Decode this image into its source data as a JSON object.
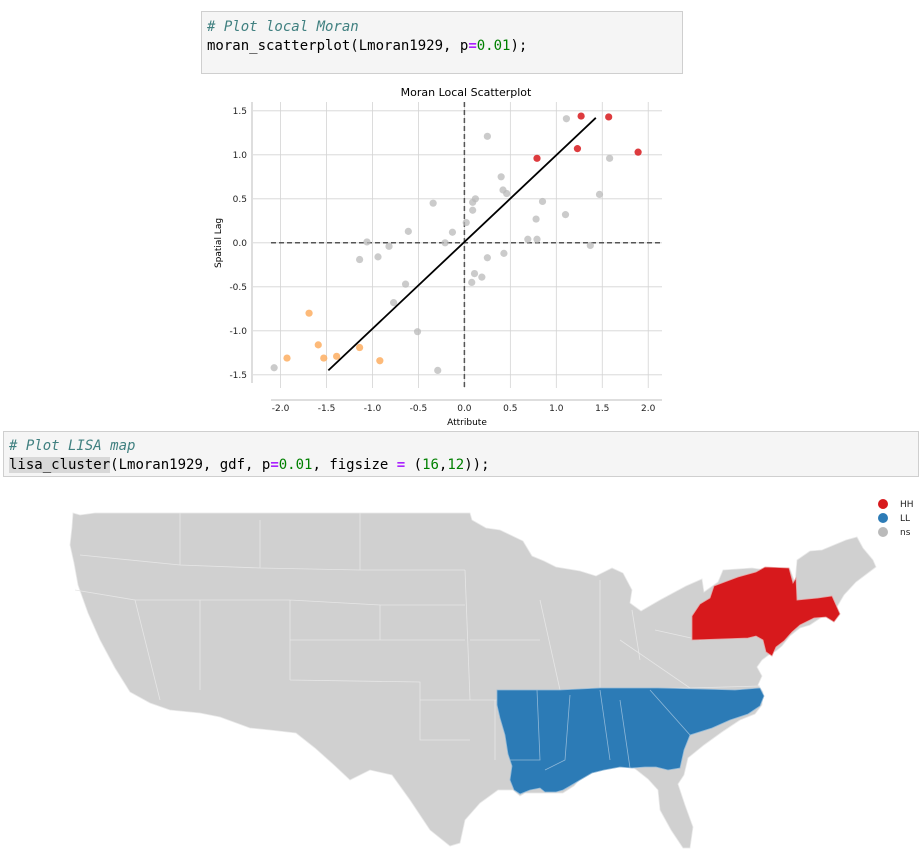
{
  "cell1": {
    "comment": "# Plot local Moran",
    "fn": "moran_scatterplot",
    "arg1": "Lmoran1929, p",
    "eq": "=",
    "pval": "0.01",
    "end": ");"
  },
  "cell2": {
    "comment": "# Plot LISA map",
    "fn": "lisa_cluster",
    "arg1": "(Lmoran1929, gdf, p",
    "eq1": "=",
    "pval": "0.01",
    "mid": ", figsize ",
    "eq2": "=",
    "open": " (",
    "w": "16",
    "comma": ",",
    "h": "12",
    "end": "));"
  },
  "chart_data": {
    "type": "scatter",
    "title": "Moran Local Scatterplot",
    "xlabel": "Attribute",
    "ylabel": "Spatial Lag",
    "xlim": [
      -2.3,
      2.15
    ],
    "ylim": [
      -1.65,
      1.6
    ],
    "xticks": [
      "-2.0",
      "-1.5",
      "-1.0",
      "-0.5",
      "0.0",
      "0.5",
      "1.0",
      "1.5",
      "2.0"
    ],
    "xtick_values": [
      -2.0,
      -1.5,
      -1.0,
      -0.5,
      0.0,
      0.5,
      1.0,
      1.5,
      2.0
    ],
    "yticks": [
      "1.5",
      "1.0",
      "0.5",
      "0.0",
      "-0.5",
      "-1.0",
      "-1.5"
    ],
    "ytick_values": [
      1.5,
      1.0,
      0.5,
      0.0,
      -0.5,
      -1.0,
      -1.5
    ],
    "grid": true,
    "fit_line": {
      "x": [
        -1.48,
        1.43
      ],
      "y": [
        -1.45,
        1.42
      ]
    },
    "reference_lines": {
      "x": 0.0,
      "y": 0.0
    },
    "colors": {
      "HH": "#d7191c",
      "LL": "#2c7bb6",
      "LH": "#abd9e9",
      "HL": "#fdae61",
      "ns": "#bababa"
    },
    "series": [
      {
        "group": "HH",
        "points": [
          [
            1.27,
            1.44
          ],
          [
            1.57,
            1.43
          ],
          [
            0.79,
            0.96
          ],
          [
            1.23,
            1.07
          ],
          [
            1.89,
            1.03
          ]
        ]
      },
      {
        "group": "HL",
        "points": [
          [
            -1.69,
            -0.8
          ],
          [
            -1.59,
            -1.16
          ],
          [
            -1.93,
            -1.31
          ],
          [
            -1.53,
            -1.31
          ],
          [
            -1.39,
            -1.29
          ],
          [
            -1.14,
            -1.19
          ],
          [
            -0.92,
            -1.34
          ]
        ]
      },
      {
        "group": "ns",
        "points": [
          [
            1.11,
            1.41
          ],
          [
            0.25,
            1.21
          ],
          [
            1.58,
            0.96
          ],
          [
            0.4,
            0.75
          ],
          [
            0.42,
            0.6
          ],
          [
            1.47,
            0.55
          ],
          [
            0.46,
            0.56
          ],
          [
            0.12,
            0.5
          ],
          [
            0.09,
            0.46
          ],
          [
            0.85,
            0.47
          ],
          [
            -0.34,
            0.45
          ],
          [
            0.09,
            0.37
          ],
          [
            1.1,
            0.32
          ],
          [
            0.78,
            0.27
          ],
          [
            0.02,
            0.23
          ],
          [
            -0.13,
            0.12
          ],
          [
            -0.61,
            0.13
          ],
          [
            -0.21,
            0.0
          ],
          [
            0.69,
            0.04
          ],
          [
            0.79,
            0.04
          ],
          [
            -1.06,
            0.01
          ],
          [
            -0.82,
            -0.04
          ],
          [
            1.37,
            -0.03
          ],
          [
            -0.94,
            -0.16
          ],
          [
            -1.14,
            -0.19
          ],
          [
            0.43,
            -0.12
          ],
          [
            0.25,
            -0.17
          ],
          [
            0.11,
            -0.35
          ],
          [
            0.19,
            -0.39
          ],
          [
            0.08,
            -0.45
          ],
          [
            -0.64,
            -0.47
          ],
          [
            -0.77,
            -0.68
          ],
          [
            -0.51,
            -1.01
          ],
          [
            -0.29,
            -1.45
          ],
          [
            -2.07,
            -1.42
          ]
        ]
      }
    ]
  },
  "map": {
    "legend": [
      {
        "label": "HH",
        "color": "#d7191c"
      },
      {
        "label": "LL",
        "color": "#2c7bb6"
      },
      {
        "label": "ns",
        "color": "#bababa"
      }
    ],
    "colors": {
      "land": "#d0d0d0",
      "border": "#e9e9e9"
    }
  }
}
